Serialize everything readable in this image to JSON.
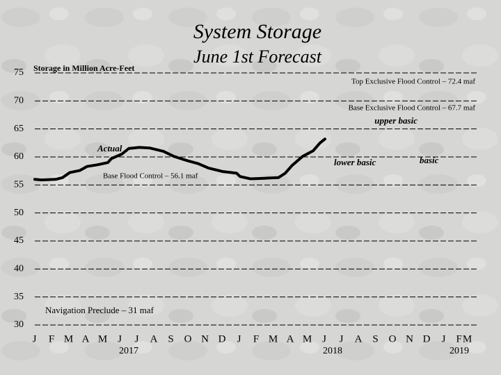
{
  "chart_data": {
    "type": "line",
    "title": "System Storage",
    "subtitle": "June 1st Forecast",
    "y_label": "Storage in Million Acre-Feet",
    "x": [
      0,
      0.41,
      1.22,
      1.63,
      2.04,
      2.65,
      3.06,
      3.67,
      4.29,
      4.49,
      5.1,
      5.51,
      6.12,
      6.73,
      7.55,
      8.16,
      8.98,
      9.59,
      10.2,
      11.02,
      11.84,
      12.04,
      12.65,
      13.47,
      14.29,
      14.69,
      15.1,
      15.71,
      16.33,
      16.73,
      17.02
    ],
    "series": [
      {
        "name": "Actual",
        "color": "#000000",
        "values": [
          56.0,
          55.9,
          56.0,
          56.3,
          57.2,
          57.6,
          58.3,
          58.6,
          59.0,
          59.7,
          60.5,
          61.5,
          61.7,
          61.6,
          61.0,
          60.1,
          59.3,
          58.8,
          58.0,
          57.4,
          57.1,
          56.5,
          56.1,
          56.2,
          56.3,
          57.1,
          58.5,
          60.1,
          61.1,
          62.5,
          63.2
        ]
      }
    ],
    "xlim": [
      0,
      25.5
    ],
    "xticks": [
      {
        "value": 0,
        "label": "J"
      },
      {
        "value": 1,
        "label": "F"
      },
      {
        "value": 2,
        "label": "M"
      },
      {
        "value": 3,
        "label": "A"
      },
      {
        "value": 4,
        "label": "M"
      },
      {
        "value": 5,
        "label": "J"
      },
      {
        "value": 6,
        "label": "J"
      },
      {
        "value": 7,
        "label": "A"
      },
      {
        "value": 8,
        "label": "S"
      },
      {
        "value": 9,
        "label": "O"
      },
      {
        "value": 10,
        "label": "N"
      },
      {
        "value": 11,
        "label": "D"
      },
      {
        "value": 12,
        "label": "J"
      },
      {
        "value": 13,
        "label": "F"
      },
      {
        "value": 14,
        "label": "M"
      },
      {
        "value": 15,
        "label": "A"
      },
      {
        "value": 16,
        "label": "M"
      },
      {
        "value": 17,
        "label": "J"
      },
      {
        "value": 18,
        "label": "J"
      },
      {
        "value": 19,
        "label": "A"
      },
      {
        "value": 20,
        "label": "S"
      },
      {
        "value": 21,
        "label": "O"
      },
      {
        "value": 22,
        "label": "N"
      },
      {
        "value": 23,
        "label": "D"
      },
      {
        "value": 24,
        "label": "J"
      },
      {
        "value": 25.2,
        "label": "FM"
      }
    ],
    "years": [
      "2017",
      "2018",
      "2019"
    ],
    "ylim": [
      30,
      75
    ],
    "yticks": [
      30,
      35,
      40,
      45,
      50,
      55,
      60,
      65,
      70,
      75
    ],
    "grid": true,
    "annotations": [
      {
        "text": "Top Exclusive Flood Control – 72.4 maf",
        "color": "#000000"
      },
      {
        "text": "Base Exclusive Flood Control – 67.7 maf",
        "color": "#000000"
      },
      {
        "text": "upper basic",
        "color": "#c00000"
      },
      {
        "text": "lower basic",
        "color": "#c00000"
      },
      {
        "text": "basic",
        "color": "#1f2a80"
      },
      {
        "text": "Base Flood Control – 56.1 maf",
        "color": "#000000"
      },
      {
        "text": "Navigation Preclude – 31 maf",
        "color": "#000000"
      }
    ]
  }
}
